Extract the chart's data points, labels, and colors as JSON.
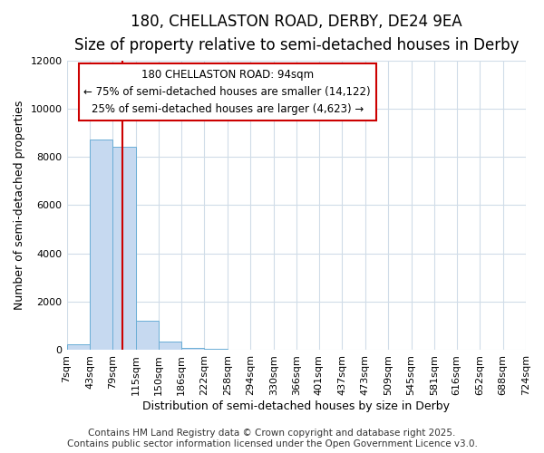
{
  "title_line1": "180, CHELLASTON ROAD, DERBY, DE24 9EA",
  "title_line2": "Size of property relative to semi-detached houses in Derby",
  "xlabel": "Distribution of semi-detached houses by size in Derby",
  "ylabel": "Number of semi-detached properties",
  "footnote_line1": "Contains HM Land Registry data © Crown copyright and database right 2025.",
  "footnote_line2": "Contains public sector information licensed under the Open Government Licence v3.0.",
  "annotation_line1": "180 CHELLASTON ROAD: 94sqm",
  "annotation_line2": "← 75% of semi-detached houses are smaller (14,122)",
  "annotation_line3": "25% of semi-detached houses are larger (4,623) →",
  "property_size": 94,
  "bin_edges": [
    7,
    43,
    79,
    115,
    150,
    186,
    222,
    258,
    294,
    330,
    366,
    401,
    437,
    473,
    509,
    545,
    581,
    616,
    652,
    688,
    724
  ],
  "bin_counts": [
    250,
    8700,
    8400,
    1200,
    350,
    100,
    50,
    10,
    5,
    2,
    1,
    0,
    0,
    0,
    0,
    0,
    0,
    0,
    0,
    0
  ],
  "bar_color": "#c6d9f0",
  "bar_edge_color": "#6baed6",
  "vline_color": "#cc0000",
  "ylim": [
    0,
    12000
  ],
  "yticks": [
    0,
    2000,
    4000,
    6000,
    8000,
    10000,
    12000
  ],
  "bg_color": "#ffffff",
  "grid_color": "#d0dce8",
  "annotation_box_color": "#ffffff",
  "annotation_box_edge": "#cc0000",
  "title1_fontsize": 12,
  "title2_fontsize": 10,
  "axis_label_fontsize": 9,
  "tick_fontsize": 8,
  "annotation_fontsize": 8.5,
  "footnote_fontsize": 7.5
}
